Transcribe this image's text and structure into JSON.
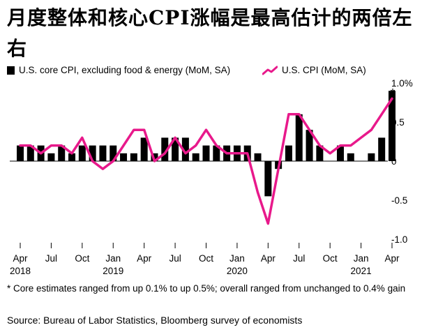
{
  "title": "月度整体和核心CPI涨幅是最高估计的两倍左右",
  "legend": {
    "core_label": "U.S. core CPI, excluding food & energy (MoM, SA)",
    "cpi_label": "U.S. CPI (MoM, SA)"
  },
  "footnote": "* Core estimates ranged from up 0.1% to up 0.5%; overall ranged from unchanged to 0.4% gain",
  "source": "Source: Bureau of Labor Statistics, Bloomberg survey of economists",
  "colors": {
    "bar": "#000000",
    "line": "#e8198b",
    "axis": "#000000",
    "text": "#000000"
  },
  "chart_data": {
    "type": "bar+line",
    "title": "月度整体和核心CPI涨幅是最高估计的两倍左右",
    "ylim": [
      -1.0,
      1.0
    ],
    "y_ticks": [
      "1.0%",
      "0.5",
      "0",
      "-0.5",
      "-1.0"
    ],
    "y_tick_values": [
      1.0,
      0.5,
      0,
      -0.5,
      -1.0
    ],
    "y_axis_side": "right",
    "categories": [
      "2018-04",
      "2018-05",
      "2018-06",
      "2018-07",
      "2018-08",
      "2018-09",
      "2018-10",
      "2018-11",
      "2018-12",
      "2019-01",
      "2019-02",
      "2019-03",
      "2019-04",
      "2019-05",
      "2019-06",
      "2019-07",
      "2019-08",
      "2019-09",
      "2019-10",
      "2019-11",
      "2019-12",
      "2020-01",
      "2020-02",
      "2020-03",
      "2020-04",
      "2020-05",
      "2020-06",
      "2020-07",
      "2020-08",
      "2020-09",
      "2020-10",
      "2020-11",
      "2020-12",
      "2021-01",
      "2021-02",
      "2021-03",
      "2021-04"
    ],
    "x_tick_labels": [
      {
        "index": 0,
        "label": "Apr",
        "year": "2018"
      },
      {
        "index": 3,
        "label": "Jul",
        "year": ""
      },
      {
        "index": 6,
        "label": "Oct",
        "year": ""
      },
      {
        "index": 9,
        "label": "Jan",
        "year": "2019"
      },
      {
        "index": 12,
        "label": "Apr",
        "year": ""
      },
      {
        "index": 15,
        "label": "Jul",
        "year": ""
      },
      {
        "index": 18,
        "label": "Oct",
        "year": ""
      },
      {
        "index": 21,
        "label": "Jan",
        "year": "2020"
      },
      {
        "index": 24,
        "label": "Apr",
        "year": ""
      },
      {
        "index": 27,
        "label": "Jul",
        "year": ""
      },
      {
        "index": 30,
        "label": "Oct",
        "year": ""
      },
      {
        "index": 33,
        "label": "Jan",
        "year": "2021"
      },
      {
        "index": 36,
        "label": "Apr",
        "year": ""
      }
    ],
    "series": [
      {
        "name": "U.S. core CPI, excluding food & energy (MoM, SA)",
        "kind": "bar",
        "values": [
          0.2,
          0.2,
          0.2,
          0.1,
          0.2,
          0.1,
          0.2,
          0.2,
          0.2,
          0.2,
          0.1,
          0.1,
          0.3,
          0.1,
          0.3,
          0.3,
          0.3,
          0.1,
          0.2,
          0.2,
          0.2,
          0.2,
          0.2,
          0.1,
          -0.45,
          -0.1,
          0.2,
          0.6,
          0.4,
          0.2,
          0.0,
          0.2,
          0.1,
          0.0,
          0.1,
          0.3,
          0.9
        ]
      },
      {
        "name": "U.S. CPI (MoM, SA)",
        "kind": "line",
        "values": [
          0.2,
          0.2,
          0.1,
          0.2,
          0.2,
          0.1,
          0.3,
          0.0,
          -0.1,
          0.0,
          0.2,
          0.4,
          0.4,
          0.0,
          0.1,
          0.3,
          0.1,
          0.2,
          0.4,
          0.2,
          0.1,
          0.1,
          0.1,
          -0.4,
          -0.8,
          -0.1,
          0.6,
          0.6,
          0.4,
          0.2,
          0.1,
          0.2,
          0.2,
          0.3,
          0.4,
          0.6,
          0.8
        ]
      }
    ],
    "annotations": [
      {
        "index": 36,
        "text": "*"
      }
    ]
  }
}
